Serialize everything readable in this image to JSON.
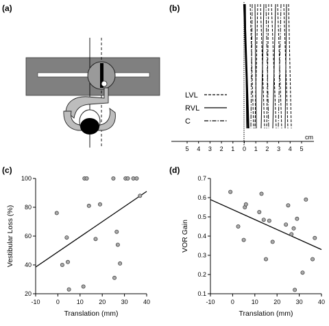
{
  "panels": {
    "a": {
      "label": "(a)"
    },
    "b": {
      "label": "(b)",
      "legend": [
        {
          "name": "LVL",
          "dash": "4,2"
        },
        {
          "name": "RVL",
          "dash": ""
        },
        {
          "name": "C",
          "dash": "6,2,1.5,2"
        }
      ],
      "scale_unit": "cm",
      "scale_ticks": [
        "5",
        "4",
        "3",
        "2",
        "1",
        "0",
        "1",
        "2",
        "3",
        "4",
        "5"
      ]
    },
    "c": {
      "label": "(c)"
    },
    "d": {
      "label": "(d)"
    }
  },
  "chart_data": [
    {
      "type": "scatter",
      "panel": "c",
      "xlabel": "Translation (mm)",
      "ylabel": "Vestibular Loss (%)",
      "xlim": [
        -10,
        40
      ],
      "ylim": [
        20,
        100
      ],
      "xticks": [
        "-10",
        "0",
        "10",
        "20",
        "30",
        "40"
      ],
      "yticks": [
        "20",
        "40",
        "60",
        "80",
        "100"
      ],
      "points": [
        [
          -0.5,
          76
        ],
        [
          2,
          40
        ],
        [
          4,
          59
        ],
        [
          4.5,
          42
        ],
        [
          5,
          23
        ],
        [
          11.5,
          25
        ],
        [
          12,
          100
        ],
        [
          13,
          100
        ],
        [
          14,
          81
        ],
        [
          17,
          58
        ],
        [
          19,
          82
        ],
        [
          25,
          100
        ],
        [
          25.5,
          31
        ],
        [
          26.5,
          63
        ],
        [
          27,
          54
        ],
        [
          28,
          41
        ],
        [
          30.5,
          100
        ],
        [
          31.5,
          100
        ],
        [
          34,
          100
        ],
        [
          35.5,
          100
        ],
        [
          37,
          88
        ]
      ],
      "fit": {
        "x": [
          -10,
          40
        ],
        "y": [
          38.5,
          91
        ]
      }
    },
    {
      "type": "scatter",
      "panel": "d",
      "xlabel": "Translation (mm)",
      "ylabel": "VOR Gain",
      "xlim": [
        -10,
        40
      ],
      "ylim": [
        0.1,
        0.7
      ],
      "xticks": [
        "-10",
        "0",
        "10",
        "20",
        "30",
        "40"
      ],
      "yticks": [
        "0.1",
        "0.2",
        "0.3",
        "0.4",
        "0.5",
        "0.6",
        "0.7"
      ],
      "points": [
        [
          -1,
          0.63
        ],
        [
          2.5,
          0.45
        ],
        [
          5,
          0.38
        ],
        [
          5.5,
          0.55
        ],
        [
          6,
          0.565
        ],
        [
          12,
          0.525
        ],
        [
          13,
          0.62
        ],
        [
          14,
          0.485
        ],
        [
          15,
          0.28
        ],
        [
          16.5,
          0.48
        ],
        [
          18,
          0.37
        ],
        [
          24,
          0.46
        ],
        [
          25,
          0.56
        ],
        [
          26.5,
          0.41
        ],
        [
          27.5,
          0.44
        ],
        [
          28,
          0.12
        ],
        [
          29,
          0.49
        ],
        [
          31.5,
          0.21
        ],
        [
          33,
          0.59
        ],
        [
          36,
          0.28
        ],
        [
          37,
          0.39
        ]
      ],
      "fit": {
        "x": [
          -10,
          40
        ],
        "y": [
          0.59,
          0.33
        ]
      }
    }
  ]
}
